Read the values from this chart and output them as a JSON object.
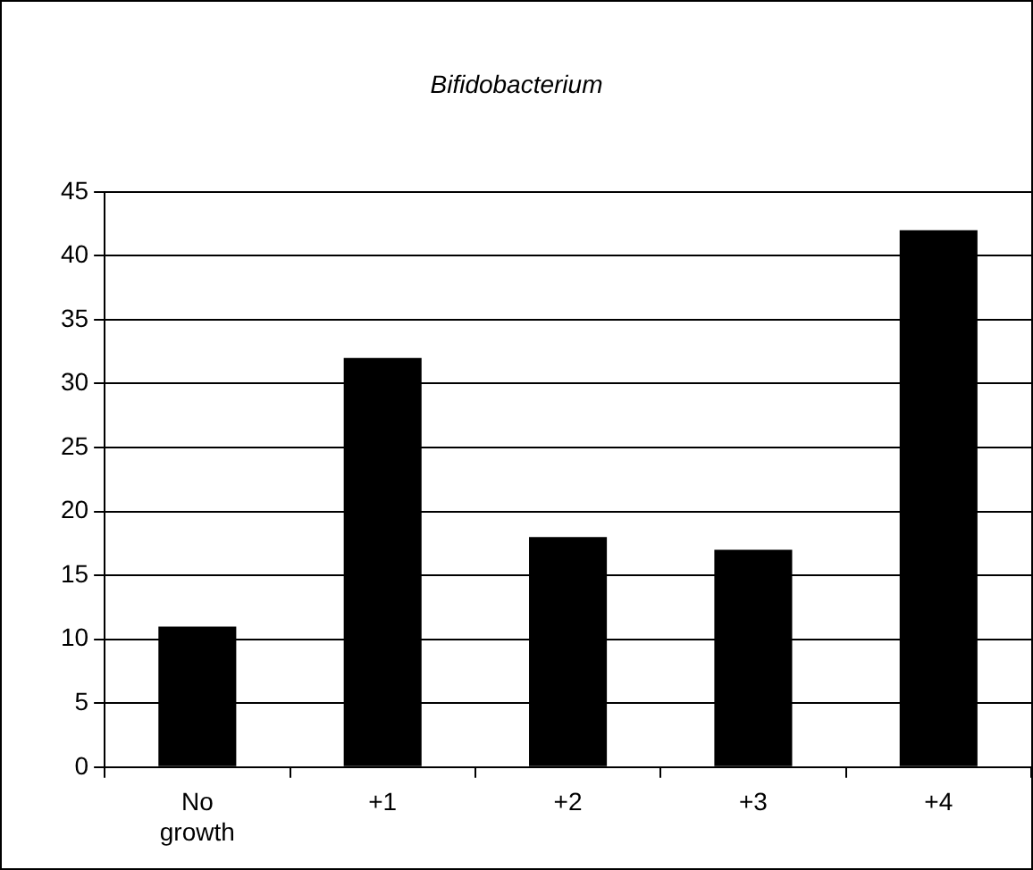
{
  "chart_data": {
    "type": "bar",
    "title": "Bifidobacterium",
    "categories": [
      "No growth",
      "+1",
      "+2",
      "+3",
      "+4"
    ],
    "values": [
      11,
      32,
      18,
      17,
      42
    ],
    "color": "#000000",
    "ylim": [
      0,
      45
    ],
    "yticks": [
      0,
      5,
      10,
      15,
      20,
      25,
      30,
      35,
      40,
      45
    ],
    "grid": "y",
    "legend": false
  }
}
